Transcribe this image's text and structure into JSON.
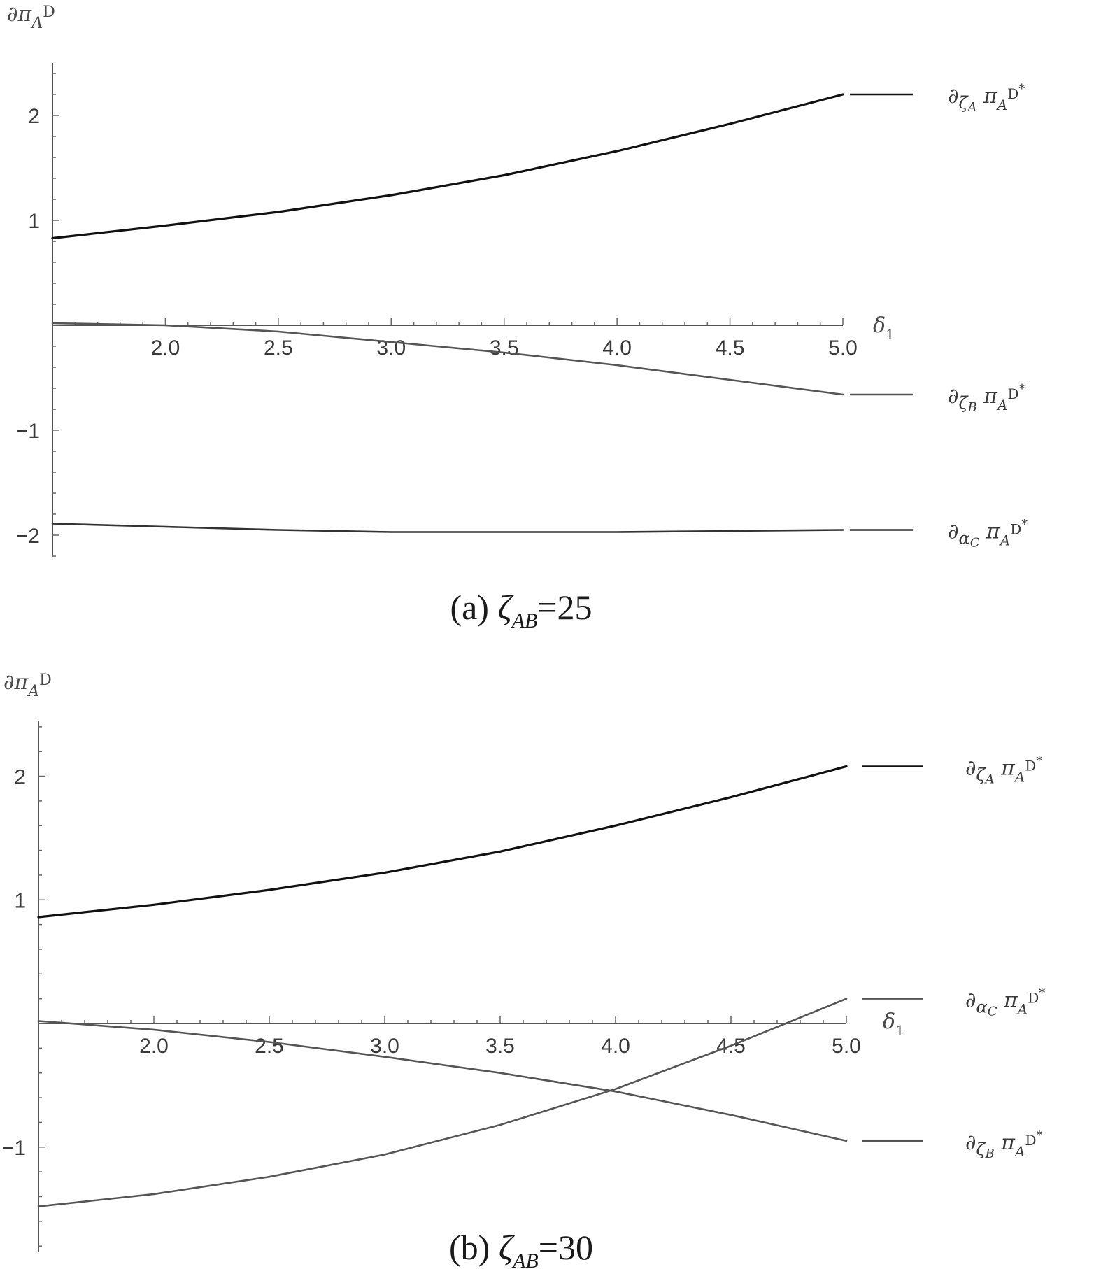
{
  "chart_data": [
    {
      "type": "line",
      "panel": "a",
      "caption": {
        "prefix": "(a) ",
        "var": "ζ",
        "sub": "AB",
        "suffix": "=25"
      },
      "ylabel": {
        "main": "∂π",
        "sub": "A",
        "sup": "D"
      },
      "xlabel": {
        "main": "δ",
        "sub": "1"
      },
      "xlim": [
        1.5,
        5.0
      ],
      "ylim": [
        -2.2,
        2.5
      ],
      "xticks": [
        2.0,
        2.5,
        3.0,
        3.5,
        4.0,
        4.5,
        5.0
      ],
      "xtick_labels": [
        "2.0",
        "2.5",
        "3.0",
        "3.5",
        "4.0",
        "4.5",
        "5.0"
      ],
      "yticks": [
        -2,
        -1,
        1,
        2
      ],
      "ytick_labels": [
        "−2",
        "−1",
        "1",
        "2"
      ],
      "series": [
        {
          "name": {
            "wrt": "ζ",
            "wrt_sub": "A"
          },
          "color": "#111111",
          "x": [
            1.5,
            2.0,
            2.5,
            3.0,
            3.5,
            4.0,
            4.5,
            5.0
          ],
          "y": [
            0.83,
            0.95,
            1.08,
            1.24,
            1.43,
            1.66,
            1.92,
            2.2
          ]
        },
        {
          "name": {
            "wrt": "ζ",
            "wrt_sub": "B"
          },
          "color": "#555555",
          "x": [
            1.5,
            2.0,
            2.5,
            3.0,
            3.5,
            4.0,
            4.5,
            5.0
          ],
          "y": [
            0.02,
            0.0,
            -0.06,
            -0.16,
            -0.26,
            -0.38,
            -0.52,
            -0.66
          ]
        },
        {
          "name": {
            "wrt": "α",
            "wrt_sub": "C"
          },
          "color": "#333333",
          "x": [
            1.5,
            2.0,
            2.5,
            3.0,
            3.5,
            4.0,
            4.5,
            5.0
          ],
          "y": [
            -1.89,
            -1.92,
            -1.95,
            -1.97,
            -1.97,
            -1.97,
            -1.96,
            -1.95
          ]
        }
      ],
      "legend_suffix": {
        "func": "π",
        "func_sub": "A",
        "func_sup": "D",
        "star": "*"
      }
    },
    {
      "type": "line",
      "panel": "b",
      "caption": {
        "prefix": "(b) ",
        "var": "ζ",
        "sub": "AB",
        "suffix": "=30"
      },
      "ylabel": {
        "main": "∂π",
        "sub": "A",
        "sup": "D"
      },
      "xlabel": {
        "main": "δ",
        "sub": "1"
      },
      "xlim": [
        1.5,
        5.0
      ],
      "ylim": [
        -1.85,
        2.45
      ],
      "xticks": [
        2.0,
        2.5,
        3.0,
        3.5,
        4.0,
        4.5,
        5.0
      ],
      "xtick_labels": [
        "2.0",
        "2.5",
        "3.0",
        "3.5",
        "4.0",
        "4.5",
        "5.0"
      ],
      "yticks": [
        -1,
        1,
        2
      ],
      "ytick_labels": [
        "−1",
        "1",
        "2"
      ],
      "series": [
        {
          "name": {
            "wrt": "ζ",
            "wrt_sub": "A"
          },
          "color": "#111111",
          "x": [
            1.5,
            2.0,
            2.5,
            3.0,
            3.5,
            4.0,
            4.5,
            5.0
          ],
          "y": [
            0.86,
            0.96,
            1.08,
            1.22,
            1.39,
            1.6,
            1.83,
            2.08
          ]
        },
        {
          "name": {
            "wrt": "α",
            "wrt_sub": "C"
          },
          "color": "#555555",
          "x": [
            1.5,
            2.0,
            2.5,
            3.0,
            3.5,
            4.0,
            4.5,
            5.0
          ],
          "y": [
            -1.48,
            -1.38,
            -1.24,
            -1.06,
            -0.82,
            -0.53,
            -0.18,
            0.2
          ]
        },
        {
          "name": {
            "wrt": "ζ",
            "wrt_sub": "B"
          },
          "color": "#555555",
          "x": [
            1.5,
            2.0,
            2.5,
            3.0,
            3.5,
            4.0,
            4.5,
            5.0
          ],
          "y": [
            0.02,
            -0.05,
            -0.15,
            -0.27,
            -0.4,
            -0.55,
            -0.74,
            -0.95
          ]
        }
      ],
      "legend_suffix": {
        "func": "π",
        "func_sub": "A",
        "func_sup": "D",
        "star": "*"
      }
    }
  ]
}
